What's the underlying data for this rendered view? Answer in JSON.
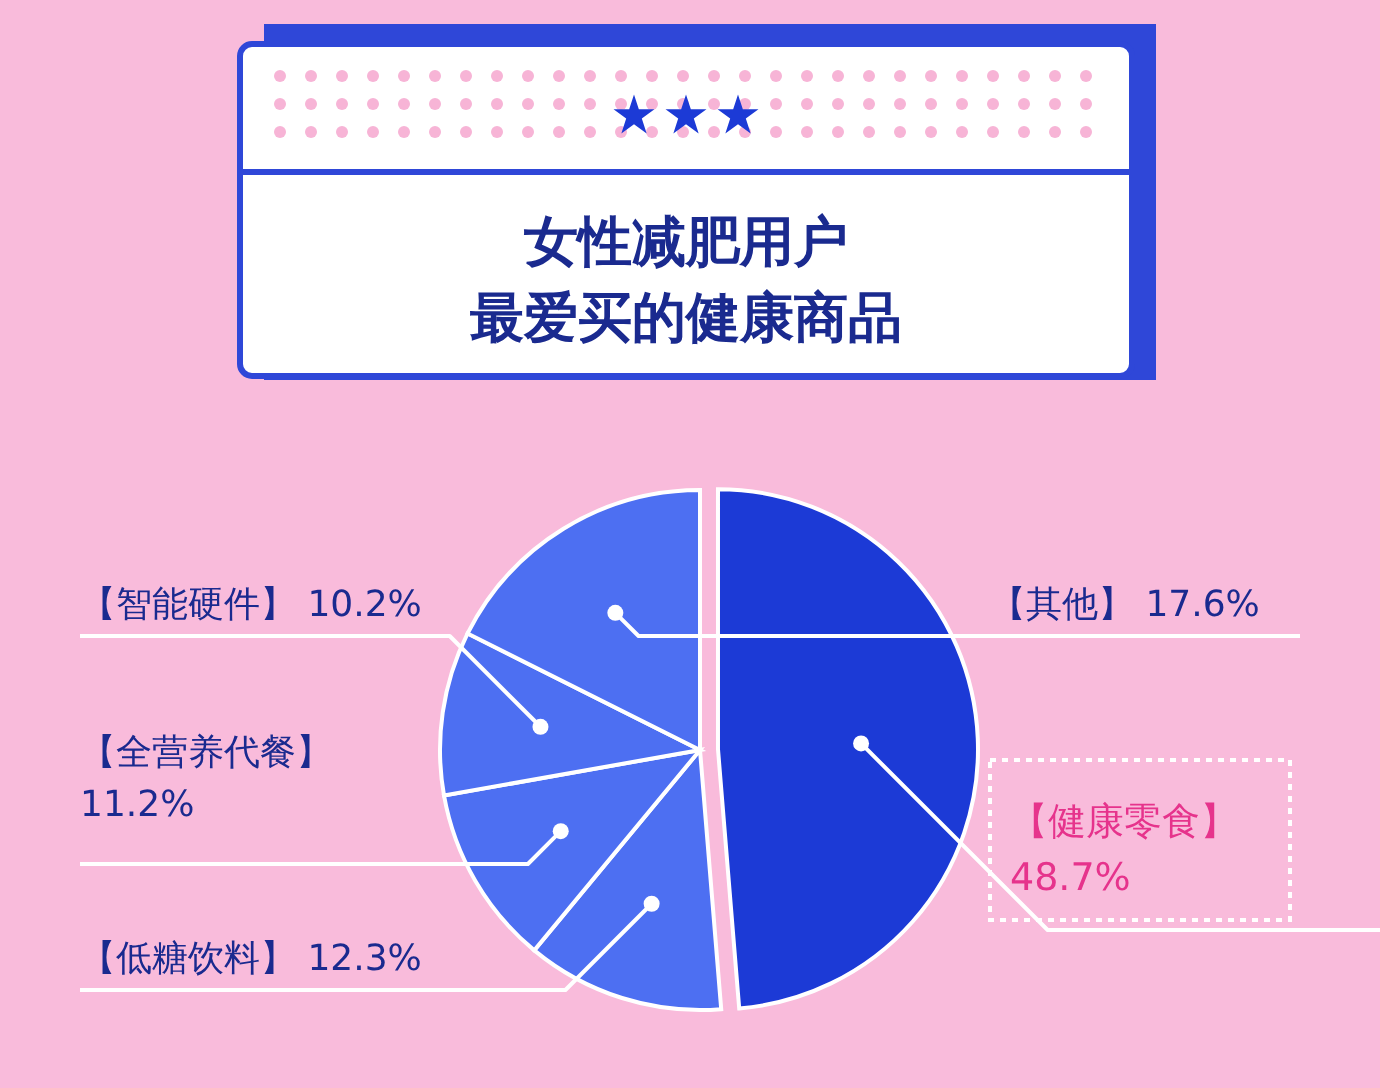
{
  "chart_data": {
    "type": "pie",
    "title": "女性减肥用户最爱买的健康商品",
    "categories": [
      "【健康零食】",
      "【低糖饮料】",
      "【全营养代餐】",
      "【智能硬件】",
      "【其他】"
    ],
    "values": [
      48.7,
      12.3,
      11.2,
      10.2,
      17.6
    ],
    "colors": [
      "#1c3ad6",
      "#4d6ff2",
      "#4d6ff2",
      "#4d6ff2",
      "#4d6ff2"
    ],
    "value_labels": [
      "48.7%",
      "12.3%",
      "11.2%",
      "10.2%",
      "17.6%"
    ]
  }
}
